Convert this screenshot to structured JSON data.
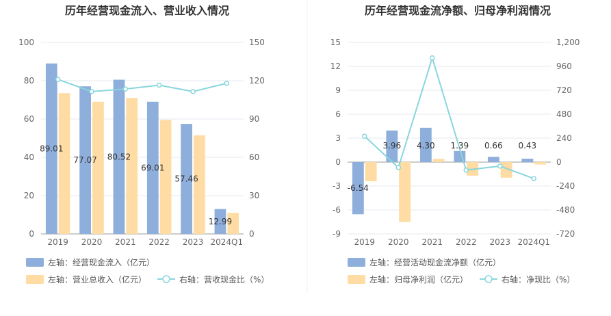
{
  "chart_data": [
    {
      "type": "bar",
      "title": "历年经营现金流入、营业收入情况",
      "categories": [
        "2019",
        "2020",
        "2021",
        "2022",
        "2023",
        "2024Q1"
      ],
      "left_axis": {
        "ylim": [
          0,
          100
        ],
        "ticks": [
          "0",
          "20",
          "40",
          "60",
          "80",
          "100"
        ]
      },
      "right_axis": {
        "ylim": [
          0,
          150
        ],
        "ticks": [
          "0",
          "30",
          "60",
          "90",
          "120",
          "150"
        ]
      },
      "series": [
        {
          "name": "左轴：经营现金流入（亿元）",
          "kind": "bar",
          "axis": "left",
          "color": "#8eaedb",
          "values": [
            89.01,
            77.07,
            80.52,
            69.01,
            57.46,
            12.99
          ],
          "labels": [
            "89.01",
            "77.07",
            "80.52",
            "69.01",
            "57.46",
            "12.99"
          ]
        },
        {
          "name": "左轴：营业总收入（亿元）",
          "kind": "bar",
          "axis": "left",
          "color": "#ffdca3",
          "values": [
            73.5,
            69,
            71,
            59.5,
            51.5,
            11
          ]
        },
        {
          "name": "右轴：营收现金比（%）",
          "kind": "line",
          "axis": "right",
          "color": "#88d6dd",
          "values": [
            121,
            111.5,
            113.5,
            116.5,
            111.5,
            118
          ]
        }
      ],
      "legend_position": "bottom-left"
    },
    {
      "type": "bar",
      "title": "历年经营现金流净额、归母净利润情况",
      "categories": [
        "2019",
        "2020",
        "2021",
        "2022",
        "2023",
        "2024Q1"
      ],
      "left_axis": {
        "ylim": [
          -9,
          15
        ],
        "ticks": [
          "-9",
          "-6",
          "-3",
          "0",
          "3",
          "6",
          "9",
          "12",
          "15"
        ]
      },
      "right_axis": {
        "ylim": [
          -720,
          1200
        ],
        "ticks": [
          "-720",
          "-480",
          "-240",
          "0",
          "240",
          "480",
          "720",
          "960",
          "1,200"
        ]
      },
      "series": [
        {
          "name": "左轴：经营活动现金流净额（亿元）",
          "kind": "bar",
          "axis": "left",
          "color": "#8eaedb",
          "values": [
            -6.54,
            3.96,
            4.3,
            1.39,
            0.66,
            0.43
          ],
          "labels": [
            "-6.54",
            "3.96",
            "4.30",
            "1.39",
            "0.66",
            "0.43"
          ]
        },
        {
          "name": "左轴：归母净利润（亿元）",
          "kind": "bar",
          "axis": "left",
          "color": "#ffdca3",
          "values": [
            -2.4,
            -7.5,
            0.4,
            -1.7,
            -1.95,
            -0.3
          ]
        },
        {
          "name": "右轴：净现比（%）",
          "kind": "line",
          "axis": "right",
          "color": "#88d6dd",
          "values": [
            260,
            -55,
            1045,
            -80,
            -40,
            -165
          ]
        }
      ],
      "legend_position": "bottom-left"
    }
  ]
}
